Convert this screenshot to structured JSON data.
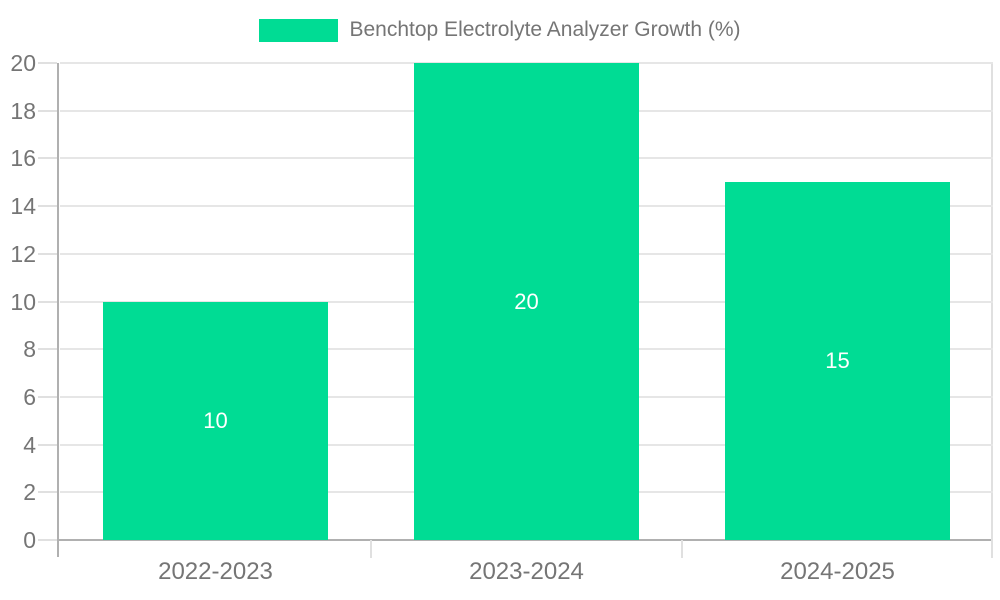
{
  "legend": {
    "label": "Benchtop Electrolyte Analyzer Growth (%)"
  },
  "chart_data": {
    "type": "bar",
    "title": "Benchtop Electrolyte Analyzer Growth (%)",
    "categories": [
      "2022-2023",
      "2023-2024",
      "2024-2025"
    ],
    "values": [
      10,
      20,
      15
    ],
    "data_labels": [
      "10",
      "20",
      "15"
    ],
    "xlabel": "",
    "ylabel": "",
    "ylim": [
      0,
      20
    ],
    "ytick_step": 2,
    "yticks": [
      0,
      2,
      4,
      6,
      8,
      10,
      12,
      14,
      16,
      18,
      20
    ],
    "grid": true,
    "legend_position": "top-center",
    "colors": {
      "bar": "#00dc94",
      "grid_line": "#e6e6e6",
      "tick_line": "#e0e0e0",
      "axis_line": "#b0b0b0",
      "label_text": "#757575",
      "data_label_text": "#ffffff",
      "background": "#ffffff"
    }
  }
}
